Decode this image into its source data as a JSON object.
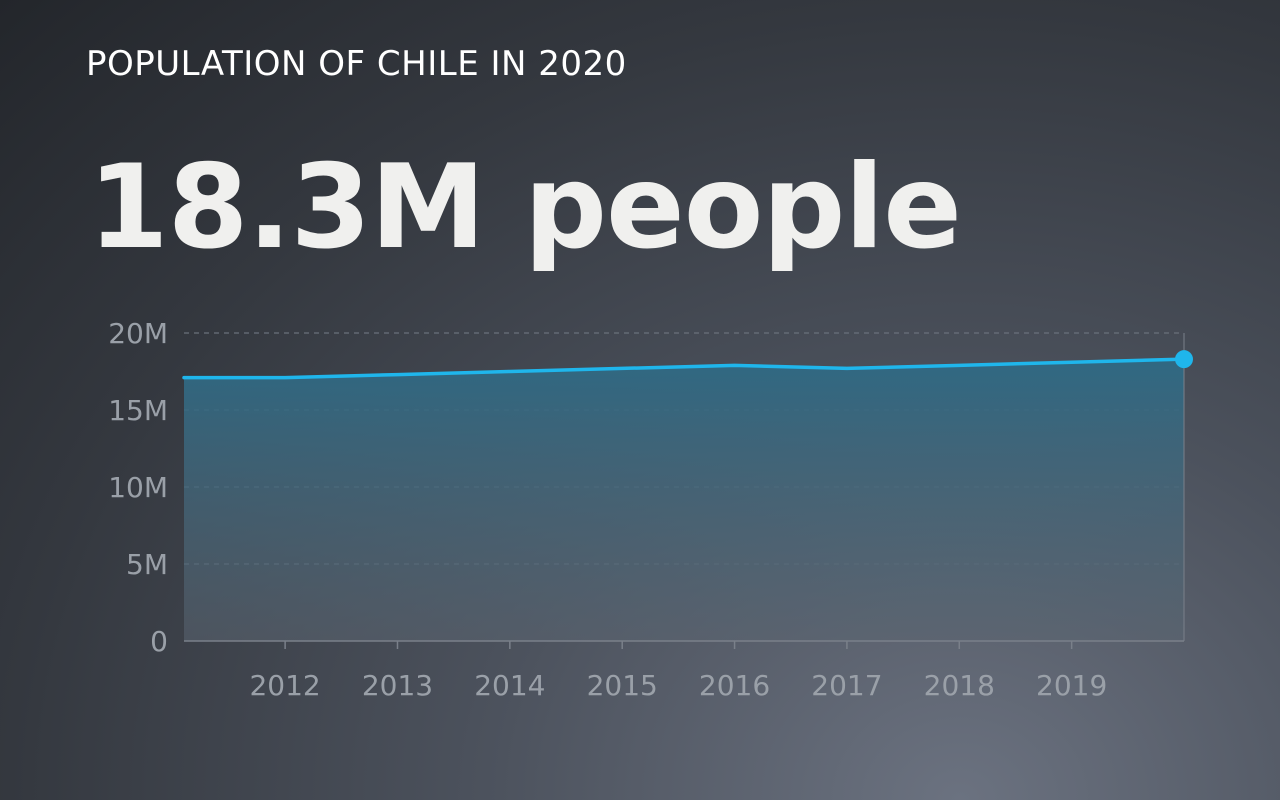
{
  "header": {
    "title": "POPULATION OF CHILE IN 2020",
    "headline": "18.3M people"
  },
  "colors": {
    "line": "#1fb6ec",
    "area_top": "#2e6a85",
    "area_bottom": "#5a6470",
    "grid": "#6a717b",
    "axis": "#7a808a"
  },
  "chart_data": {
    "type": "area",
    "x": [
      2011.1,
      2012,
      2013,
      2014,
      2015,
      2016,
      2017,
      2018,
      2019,
      2020
    ],
    "values": [
      17.1,
      17.1,
      17.3,
      17.5,
      17.7,
      17.9,
      17.7,
      17.9,
      18.1,
      18.3
    ],
    "xticks": [
      "2012",
      "2013",
      "2014",
      "2015",
      "2016",
      "2017",
      "2018",
      "2019"
    ],
    "yticks": [
      "0",
      "5M",
      "10M",
      "15M",
      "20M"
    ],
    "ytick_values": [
      0,
      5,
      10,
      15,
      20
    ],
    "ylim": [
      0,
      20
    ],
    "xlim": [
      2011.1,
      2020
    ],
    "grid": true,
    "title": "",
    "xlabel": "",
    "ylabel": ""
  }
}
